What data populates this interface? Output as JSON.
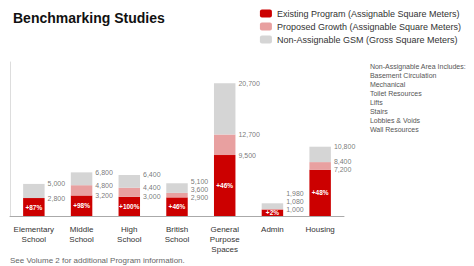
{
  "chart_data": {
    "type": "bar",
    "title": "Benchmarking Studies",
    "categories": [
      "Elementary\nSchool",
      "Middle\nSchool",
      "High\nSchool",
      "British\nSchool",
      "General\nPurpose\nSpaces",
      "Admin",
      "Housing"
    ],
    "series": [
      {
        "name": "Existing Program (Assignable Square Meters)",
        "color": "#cc0000",
        "values": [
          2800,
          3200,
          3000,
          2900,
          9500,
          1000,
          7200
        ],
        "labels": [
          "+87%",
          "+98%",
          "+100%",
          "+46%",
          "+46%",
          "+2%",
          "+48%"
        ]
      },
      {
        "name": "Proposed Growth (Assignable Square Meters)",
        "color": "#e8a0a0",
        "values": [
          0,
          1600,
          1400,
          700,
          3200,
          80,
          1200
        ]
      },
      {
        "name": "Non-Assignable GSM (Gross Square Meters)",
        "color": "#d5d5d5",
        "values": [
          2200,
          2000,
          2000,
          1500,
          8000,
          900,
          2400
        ]
      }
    ],
    "stacked": true,
    "ylim": [
      0,
      24000
    ],
    "tick_labels": "x",
    "grid": false,
    "legend": "upper right",
    "annotations": [
      {
        "category": "Elementary\nSchool",
        "y": 2800,
        "text": "2,800"
      },
      {
        "category": "Elementary\nSchool",
        "y": 5000,
        "text": "5,000"
      },
      {
        "category": "Middle\nSchool",
        "y": 3200,
        "text": "3,200"
      },
      {
        "category": "Middle\nSchool",
        "y": 4800,
        "text": "4,800"
      },
      {
        "category": "Middle\nSchool",
        "y": 6800,
        "text": "6,800"
      },
      {
        "category": "High\nSchool",
        "y": 3000,
        "text": "3,000"
      },
      {
        "category": "High\nSchool",
        "y": 4400,
        "text": "4,400"
      },
      {
        "category": "High\nSchool",
        "y": 6400,
        "text": "6,400"
      },
      {
        "category": "British\nSchool",
        "y": 2900,
        "text": "2,900"
      },
      {
        "category": "British\nSchool",
        "y": 3600,
        "text": "3,600"
      },
      {
        "category": "British\nSchool",
        "y": 5100,
        "text": "5,100"
      },
      {
        "category": "General\nPurpose\nSpaces",
        "y": 9500,
        "text": "9,500"
      },
      {
        "category": "General\nPurpose\nSpaces",
        "y": 12700,
        "text": "12,700"
      },
      {
        "category": "General\nPurpose\nSpaces",
        "y": 20700,
        "text": "20,700"
      },
      {
        "category": "Admin",
        "y": 1000,
        "text": "1,000"
      },
      {
        "category": "Admin",
        "y": 1080,
        "text": "1,080"
      },
      {
        "category": "Admin",
        "y": 1980,
        "text": "1,980"
      },
      {
        "category": "Housing",
        "y": 7200,
        "text": "7,200"
      },
      {
        "category": "Housing",
        "y": 8400,
        "text": "8,400"
      },
      {
        "category": "Housing",
        "y": 10800,
        "text": "10,800"
      }
    ],
    "notes": "Non-Assignable Area Includes:\nBasement Circulation\nMechanical\nToilet Resources\nLifts\nStairs\nLobbies & Voids\nWall Resources",
    "footnote": "See Volume 2 for additional Program information."
  }
}
